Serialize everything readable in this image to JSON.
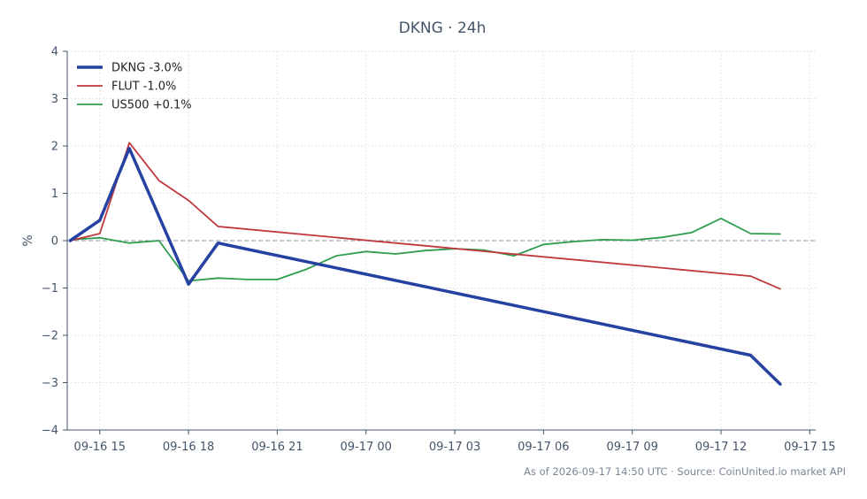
{
  "chart_data": {
    "type": "line",
    "title": "DKNG · 24h",
    "xlabel": "",
    "ylabel": "%",
    "x_ticks": [
      "09-16 15",
      "09-16 18",
      "09-16 21",
      "09-17 00",
      "09-17 03",
      "09-17 06",
      "09-17 09",
      "09-17 12",
      "09-17 15"
    ],
    "y_ticks": [
      "4",
      "3",
      "2",
      "1",
      "0",
      "−1",
      "−2",
      "−3",
      "−4"
    ],
    "ylim": [
      -4,
      4
    ],
    "xlim": [
      "09-16 13:54",
      "09-17 15:12"
    ],
    "grid": true,
    "zero_line": true,
    "legend_position": "top-left",
    "series": [
      {
        "name": "DKNG -3.0%",
        "color": "#2541a1",
        "points": [
          [
            "09-16 14:00",
            0.0
          ],
          [
            "09-16 15:00",
            0.43
          ],
          [
            "09-16 16:00",
            1.95
          ],
          [
            "09-16 18:00",
            -0.92
          ],
          [
            "09-16 19:00",
            -0.05
          ],
          [
            "09-17 13:00",
            -2.42
          ],
          [
            "09-17 14:00",
            -3.03
          ]
        ]
      },
      {
        "name": "FLUT -1.0%",
        "color": "#c0383c",
        "points": [
          [
            "09-16 14:00",
            0.0
          ],
          [
            "09-16 15:00",
            0.15
          ],
          [
            "09-16 16:00",
            2.07
          ],
          [
            "09-16 17:00",
            1.27
          ],
          [
            "09-16 18:00",
            0.85
          ],
          [
            "09-16 19:00",
            0.3
          ],
          [
            "09-17 13:00",
            -0.75
          ],
          [
            "09-17 14:00",
            -1.02
          ]
        ]
      },
      {
        "name": "US500 +0.1%",
        "color": "#2e9d4e",
        "points": [
          [
            "09-16 14:00",
            0.02
          ],
          [
            "09-16 15:00",
            0.06
          ],
          [
            "09-16 16:00",
            -0.05
          ],
          [
            "09-16 17:00",
            0.0
          ],
          [
            "09-16 18:00",
            -0.85
          ],
          [
            "09-16 19:00",
            -0.79
          ],
          [
            "09-16 20:00",
            -0.82
          ],
          [
            "09-16 21:00",
            -0.82
          ],
          [
            "09-16 22:00",
            -0.6
          ],
          [
            "09-16 23:00",
            -0.32
          ],
          [
            "09-17 00:00",
            -0.23
          ],
          [
            "09-17 01:00",
            -0.28
          ],
          [
            "09-17 02:00",
            -0.21
          ],
          [
            "09-17 03:00",
            -0.17
          ],
          [
            "09-17 04:00",
            -0.2
          ],
          [
            "09-17 05:00",
            -0.32
          ],
          [
            "09-17 06:00",
            -0.08
          ],
          [
            "09-17 07:00",
            -0.02
          ],
          [
            "09-17 08:00",
            0.02
          ],
          [
            "09-17 09:00",
            0.01
          ],
          [
            "09-17 10:00",
            0.07
          ],
          [
            "09-17 11:00",
            0.17
          ],
          [
            "09-17 12:00",
            0.47
          ],
          [
            "09-17 13:00",
            0.15
          ],
          [
            "09-17 14:00",
            0.14
          ]
        ]
      }
    ],
    "footer": "As of 2026-09-17 14:50 UTC · Source: CoinUnited.io market API"
  }
}
